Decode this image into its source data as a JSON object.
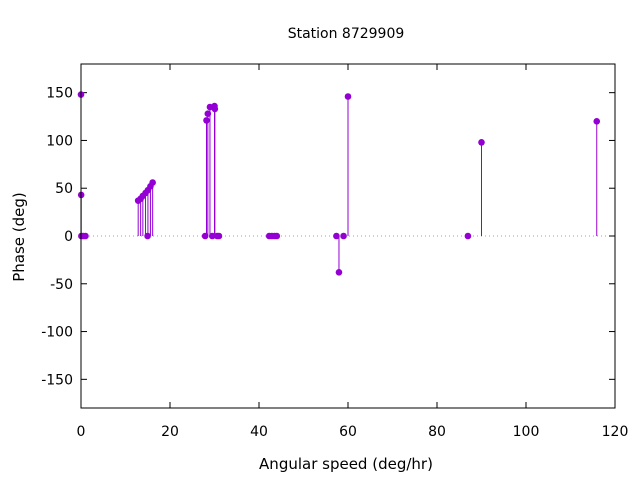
{
  "chart_data": {
    "type": "scatter",
    "style": "impulses-with-points",
    "title": "Station 8729909",
    "xlabel": "Angular speed (deg/hr)",
    "ylabel": "Phase (deg)",
    "xlim": [
      0,
      120
    ],
    "ylim": [
      -180,
      180
    ],
    "xticks": [
      0,
      20,
      40,
      60,
      80,
      100,
      120
    ],
    "yticks": [
      -150,
      -100,
      -50,
      0,
      50,
      100,
      150
    ],
    "grid": false,
    "zero_line": true,
    "color": "#9400d3",
    "points": [
      {
        "x": 0.0,
        "y": 148
      },
      {
        "x": 0.04,
        "y": 43
      },
      {
        "x": 0.08,
        "y": 0
      },
      {
        "x": 0.5,
        "y": 0
      },
      {
        "x": 1.0,
        "y": 0
      },
      {
        "x": 12.85,
        "y": 37
      },
      {
        "x": 13.4,
        "y": 39
      },
      {
        "x": 13.9,
        "y": 42
      },
      {
        "x": 14.5,
        "y": 45
      },
      {
        "x": 14.96,
        "y": 0
      },
      {
        "x": 15.04,
        "y": 48
      },
      {
        "x": 15.6,
        "y": 52
      },
      {
        "x": 16.1,
        "y": 56
      },
      {
        "x": 27.9,
        "y": 0
      },
      {
        "x": 28.2,
        "y": 121
      },
      {
        "x": 28.5,
        "y": 128
      },
      {
        "x": 28.98,
        "y": 135
      },
      {
        "x": 29.5,
        "y": 0
      },
      {
        "x": 30.0,
        "y": 136
      },
      {
        "x": 30.08,
        "y": 133
      },
      {
        "x": 30.6,
        "y": 0
      },
      {
        "x": 31.0,
        "y": 0
      },
      {
        "x": 42.3,
        "y": 0
      },
      {
        "x": 42.9,
        "y": 0
      },
      {
        "x": 43.5,
        "y": 0
      },
      {
        "x": 44.0,
        "y": 0
      },
      {
        "x": 57.4,
        "y": 0
      },
      {
        "x": 57.97,
        "y": -38
      },
      {
        "x": 59.0,
        "y": 0
      },
      {
        "x": 60.0,
        "y": 146
      },
      {
        "x": 86.95,
        "y": 0
      },
      {
        "x": 90.0,
        "y": 98
      },
      {
        "x": 115.9,
        "y": 120
      }
    ]
  }
}
